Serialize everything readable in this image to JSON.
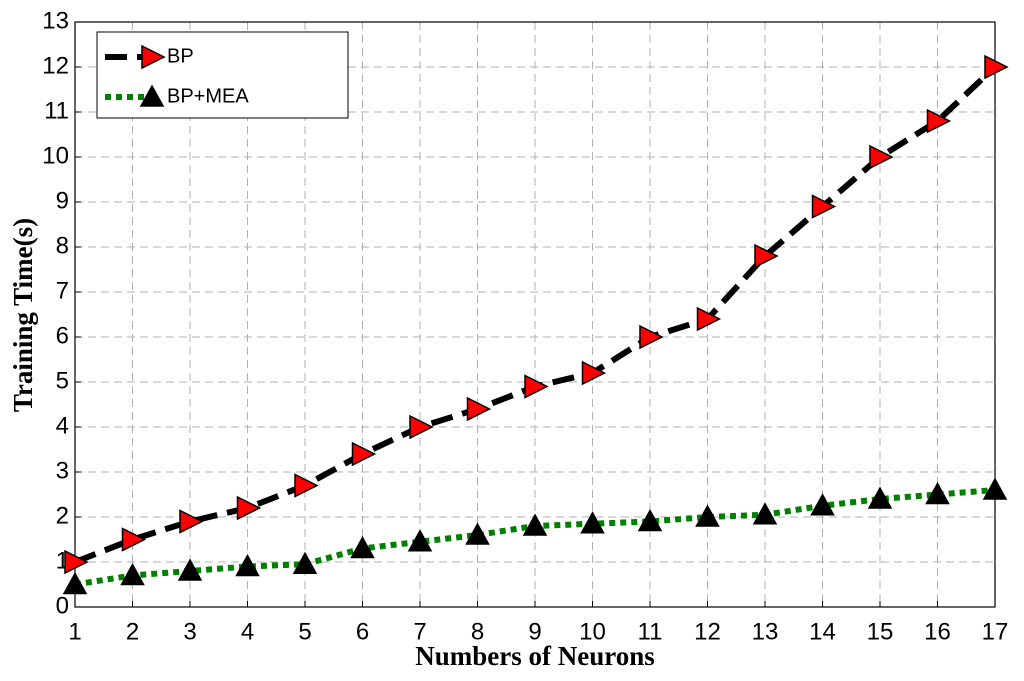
{
  "chart_data": {
    "type": "line",
    "x_label": "Numbers of Neurons",
    "y_label": "Training Time(s)",
    "x": [
      1,
      2,
      3,
      4,
      5,
      6,
      7,
      8,
      9,
      10,
      11,
      12,
      13,
      14,
      15,
      16,
      17
    ],
    "series": [
      {
        "name": "BP",
        "color": "#000000",
        "marker_color": "#ff0000",
        "marker": "triangle-right",
        "line_style": "dashed",
        "values": [
          1,
          1.5,
          1.9,
          2.2,
          2.7,
          3.4,
          4.0,
          4.4,
          4.9,
          5.2,
          6.0,
          6.4,
          7.8,
          8.9,
          10.0,
          10.8,
          12.0
        ]
      },
      {
        "name": "BP+MEA",
        "color": "#008000",
        "marker_color": "#000000",
        "marker": "triangle-up",
        "line_style": "dotted",
        "values": [
          0.5,
          0.7,
          0.8,
          0.9,
          0.95,
          1.3,
          1.45,
          1.6,
          1.8,
          1.85,
          1.9,
          2.0,
          2.05,
          2.25,
          2.4,
          2.5,
          2.6
        ]
      }
    ],
    "xlim": [
      1,
      17
    ],
    "xticks": [
      1,
      2,
      3,
      4,
      5,
      6,
      7,
      8,
      9,
      10,
      11,
      12,
      13,
      14,
      15,
      16,
      17
    ],
    "ylim": [
      0,
      13
    ],
    "yticks": [
      0,
      1,
      2,
      3,
      4,
      5,
      6,
      7,
      8,
      9,
      10,
      11,
      12,
      13
    ],
    "grid": true,
    "legend": "upper left"
  }
}
